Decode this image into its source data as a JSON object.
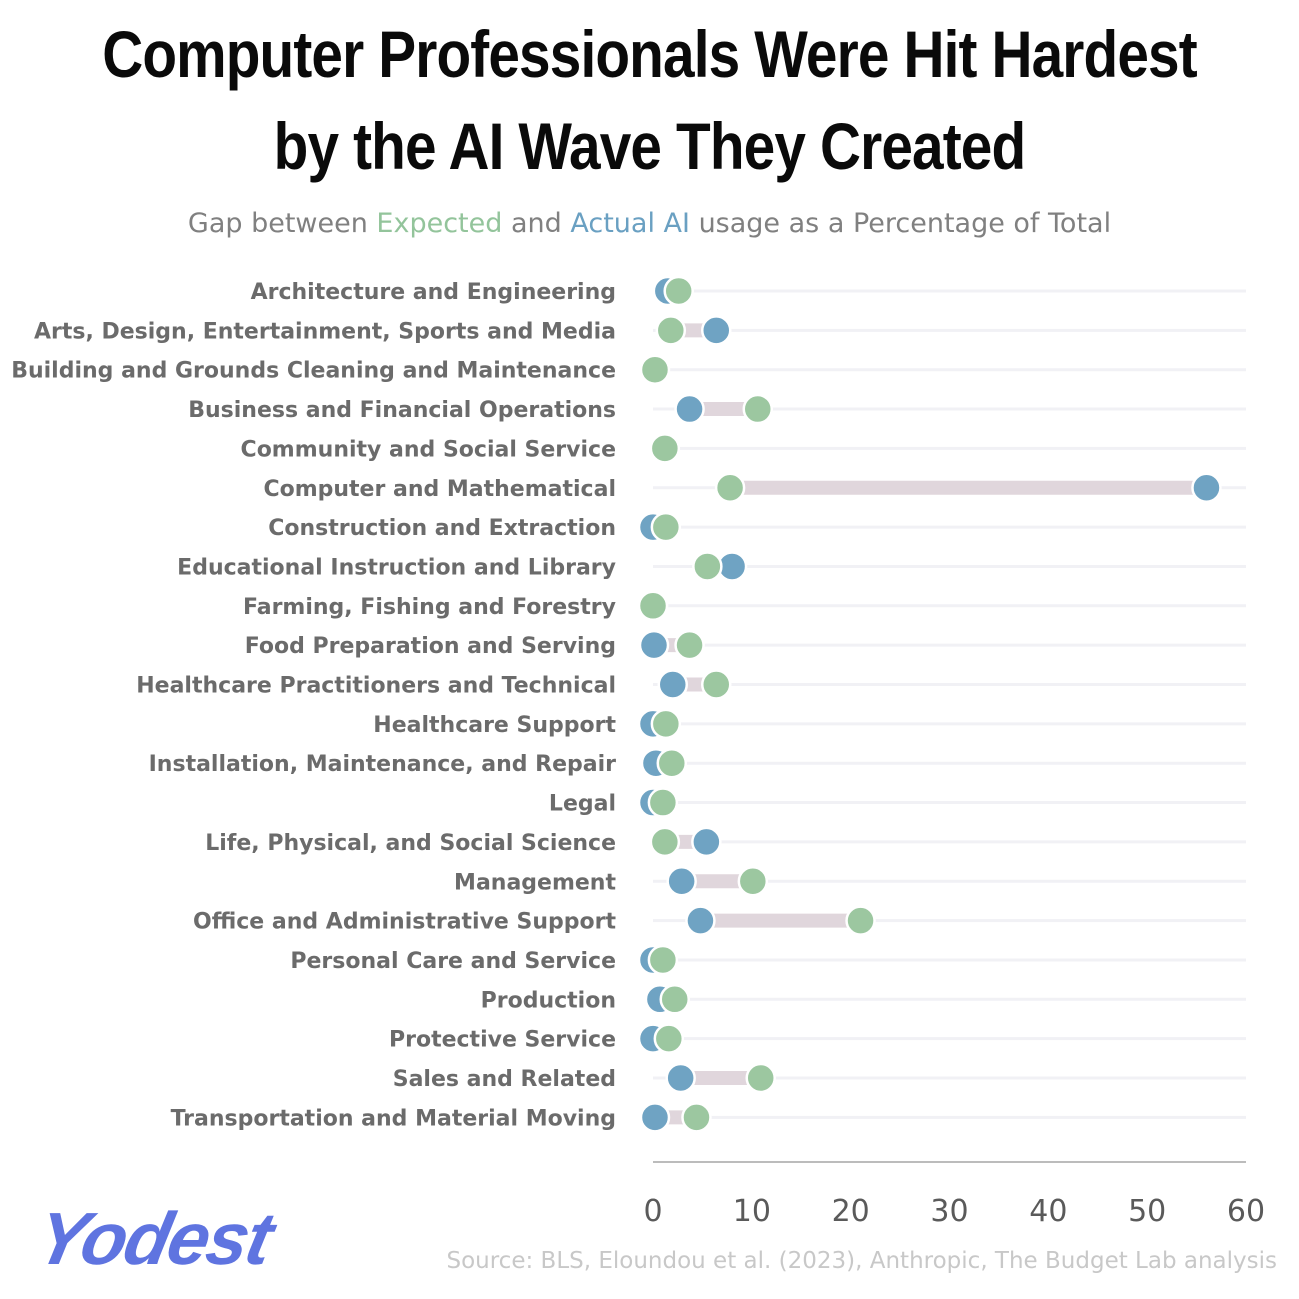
{
  "header": {
    "title_line1": "Computer Professionals Were Hit Hardest",
    "title_line2": "by the AI Wave They Created",
    "subtitle_prefix": "Gap between ",
    "subtitle_expected": "Expected",
    "subtitle_mid": " and ",
    "subtitle_actual": "Actual AI",
    "subtitle_suffix": " usage as a Percentage of Total"
  },
  "footer": {
    "logo": "Yodest",
    "source": "Source: BLS, Eloundou et al. (2023), Anthropic, The Budget Lab analysis"
  },
  "colors": {
    "expected": "#9cc7a0",
    "actual": "#6fa3c3",
    "connector": "#e0d6dc",
    "gridline": "#f1f1f5",
    "axis": "#bcbcbc"
  },
  "chart_data": {
    "type": "dumbbell",
    "xlim": [
      0,
      60
    ],
    "xticks": [
      0,
      10,
      20,
      30,
      40,
      50,
      60
    ],
    "series": [
      {
        "name": "Expected",
        "key": "expected"
      },
      {
        "name": "Actual AI",
        "key": "actual"
      }
    ],
    "categories": [
      "Architecture and Engineering",
      "Arts, Design, Entertainment, Sports and Media",
      "Building and Grounds Cleaning and Maintenance",
      "Business and Financial Operations",
      "Community and Social Service",
      "Computer and Mathematical",
      "Construction and Extraction",
      "Educational Instruction and Library",
      "Farming, Fishing and Forestry",
      "Food Preparation and Serving",
      "Healthcare Practitioners and Technical",
      "Healthcare Support",
      "Installation, Maintenance, and Repair",
      "Legal",
      "Life, Physical, and Social Science",
      "Management",
      "Office and Administrative Support",
      "Personal Care and Service",
      "Production",
      "Protective Service",
      "Sales and Related",
      "Transportation and Material Moving"
    ],
    "expected": [
      2.6,
      1.8,
      0.2,
      10.6,
      1.2,
      7.8,
      1.3,
      5.5,
      0.0,
      3.7,
      6.4,
      1.3,
      1.9,
      1.0,
      1.2,
      10.1,
      21.0,
      1.0,
      2.2,
      1.6,
      10.9,
      4.4
    ],
    "actual": [
      1.5,
      6.4,
      0.1,
      3.7,
      1.0,
      56.0,
      0.0,
      8.0,
      0.0,
      0.1,
      2.0,
      0.0,
      0.3,
      0.0,
      5.4,
      2.9,
      4.8,
      0.0,
      0.7,
      0.0,
      2.8,
      0.2
    ]
  }
}
